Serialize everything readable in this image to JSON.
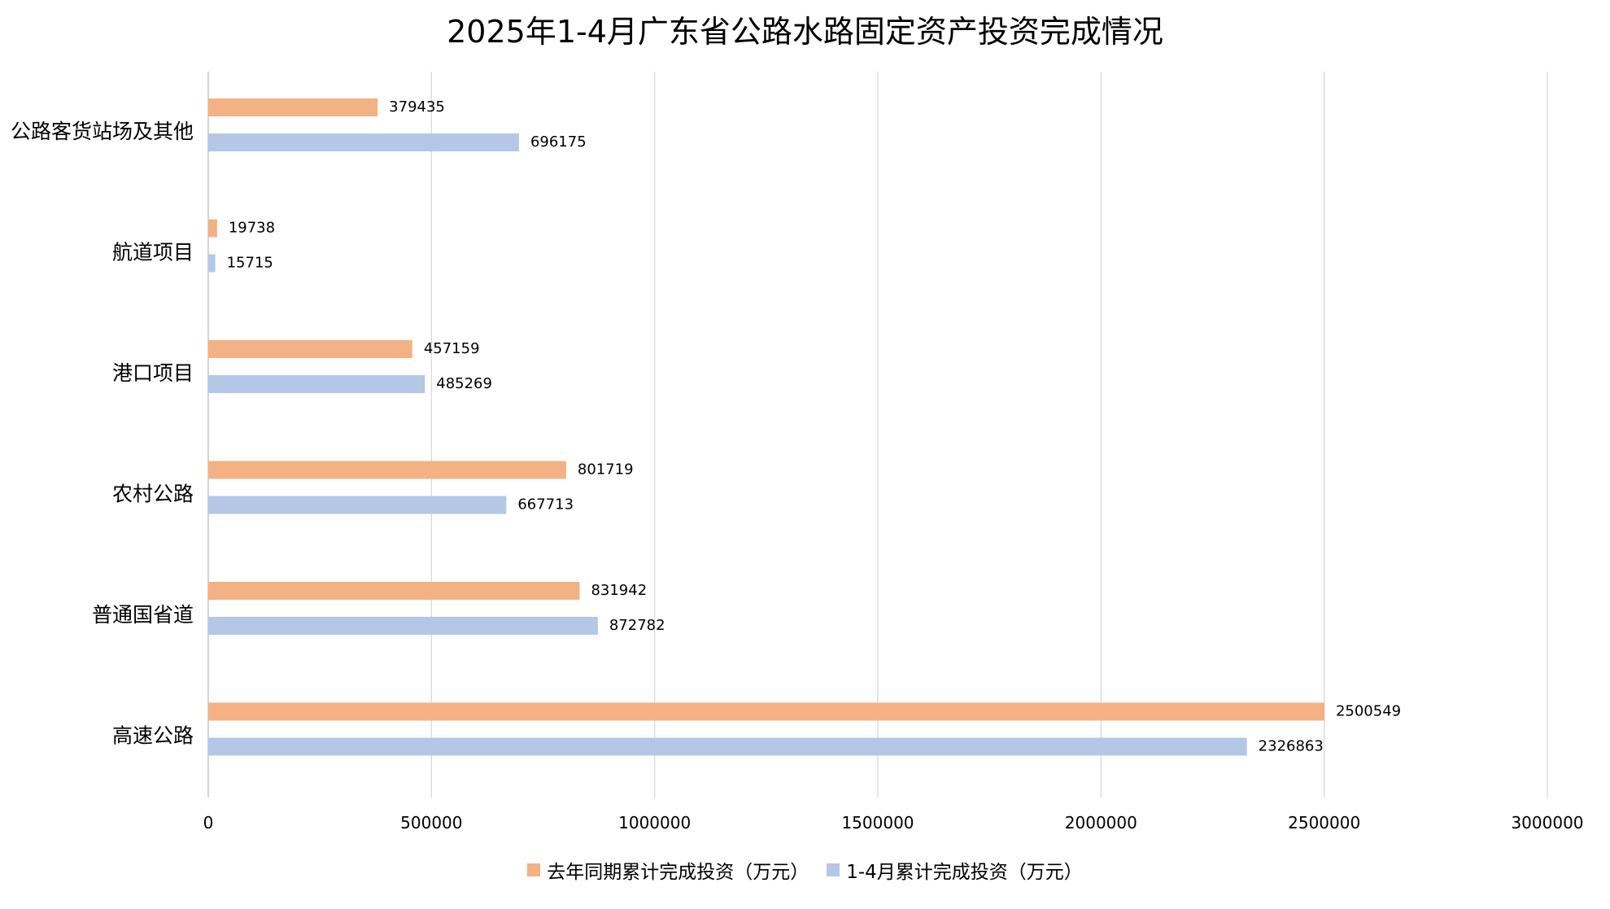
{
  "chart_data": {
    "type": "bar",
    "orientation": "horizontal",
    "title": "2025年1-4月广东省公路水路固定资产投资完成情况",
    "categories": [
      "公路客货站场及其他",
      "航道项目",
      "港口项目",
      "农村公路",
      "普通国省道",
      "高速公路"
    ],
    "series": [
      {
        "name": "去年同期累计完成投资（万元）",
        "color": "#F4B183",
        "values": [
          379435,
          19738,
          457159,
          801719,
          831942,
          2500549
        ]
      },
      {
        "name": "1-4月累计完成投资（万元）",
        "color": "#B4C7E7",
        "values": [
          696175,
          15715,
          485269,
          667713,
          872782,
          2326863
        ]
      }
    ],
    "xlim": [
      0,
      3000000
    ],
    "xticks": [
      "0",
      "500000",
      "1000000",
      "1500000",
      "2000000",
      "2500000",
      "3000000"
    ],
    "grid": true,
    "data_labels": true,
    "legend_position": "bottom"
  }
}
